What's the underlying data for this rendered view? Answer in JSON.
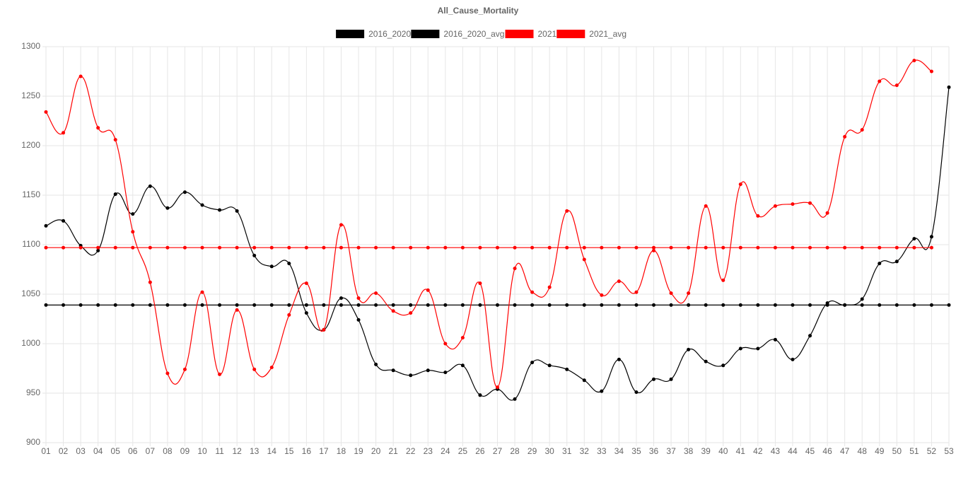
{
  "chart_data": {
    "type": "line",
    "title": "All_Cause_Mortality",
    "categories": [
      "01",
      "02",
      "03",
      "04",
      "05",
      "06",
      "07",
      "08",
      "09",
      "10",
      "11",
      "12",
      "13",
      "14",
      "15",
      "16",
      "17",
      "18",
      "19",
      "20",
      "21",
      "22",
      "23",
      "24",
      "25",
      "26",
      "27",
      "28",
      "29",
      "30",
      "31",
      "32",
      "33",
      "34",
      "35",
      "36",
      "37",
      "38",
      "39",
      "40",
      "41",
      "42",
      "43",
      "44",
      "45",
      "46",
      "47",
      "48",
      "49",
      "50",
      "51",
      "52",
      "53"
    ],
    "series": [
      {
        "name": "2016_2020",
        "color": "#000000",
        "values": [
          1119,
          1124,
          1099,
          1094,
          1151,
          1131,
          1159,
          1137,
          1153,
          1140,
          1135,
          1134,
          1089,
          1078,
          1081,
          1031,
          1014,
          1046,
          1024,
          979,
          973,
          968,
          973,
          971,
          978,
          948,
          954,
          944,
          981,
          978,
          974,
          963,
          952,
          984,
          951,
          964,
          964,
          994,
          982,
          978,
          995,
          995,
          1004,
          984,
          1008,
          1041,
          1039,
          1045,
          1081,
          1083,
          1106,
          1108,
          1259
        ]
      },
      {
        "name": "2016_2020_avg",
        "color": "#000000",
        "values": [
          1039,
          1039,
          1039,
          1039,
          1039,
          1039,
          1039,
          1039,
          1039,
          1039,
          1039,
          1039,
          1039,
          1039,
          1039,
          1039,
          1039,
          1039,
          1039,
          1039,
          1039,
          1039,
          1039,
          1039,
          1039,
          1039,
          1039,
          1039,
          1039,
          1039,
          1039,
          1039,
          1039,
          1039,
          1039,
          1039,
          1039,
          1039,
          1039,
          1039,
          1039,
          1039,
          1039,
          1039,
          1039,
          1039,
          1039,
          1039,
          1039,
          1039,
          1039,
          1039,
          1039
        ]
      },
      {
        "name": "2021",
        "color": "#ff0000",
        "values": [
          1234,
          1213,
          1270,
          1218,
          1206,
          1113,
          1062,
          970,
          974,
          1052,
          969,
          1034,
          974,
          976,
          1029,
          1061,
          1014,
          1120,
          1046,
          1051,
          1033,
          1031,
          1054,
          1000,
          1006,
          1061,
          956,
          1076,
          1052,
          1057,
          1134,
          1085,
          1049,
          1063,
          1052,
          1094,
          1051,
          1051,
          1139,
          1064,
          1161,
          1129,
          1139,
          1141,
          1142,
          1132,
          1209,
          1216,
          1265,
          1261,
          1286,
          1275,
          null
        ]
      },
      {
        "name": "2021_avg",
        "color": "#ff0000",
        "values": [
          1097,
          1097,
          1097,
          1097,
          1097,
          1097,
          1097,
          1097,
          1097,
          1097,
          1097,
          1097,
          1097,
          1097,
          1097,
          1097,
          1097,
          1097,
          1097,
          1097,
          1097,
          1097,
          1097,
          1097,
          1097,
          1097,
          1097,
          1097,
          1097,
          1097,
          1097,
          1097,
          1097,
          1097,
          1097,
          1097,
          1097,
          1097,
          1097,
          1097,
          1097,
          1097,
          1097,
          1097,
          1097,
          1097,
          1097,
          1097,
          1097,
          1097,
          1097,
          1097,
          null
        ]
      }
    ],
    "ylim": [
      900,
      1300
    ],
    "yticks": [
      900,
      950,
      1000,
      1050,
      1100,
      1150,
      1200,
      1250,
      1300
    ],
    "grid": true
  }
}
